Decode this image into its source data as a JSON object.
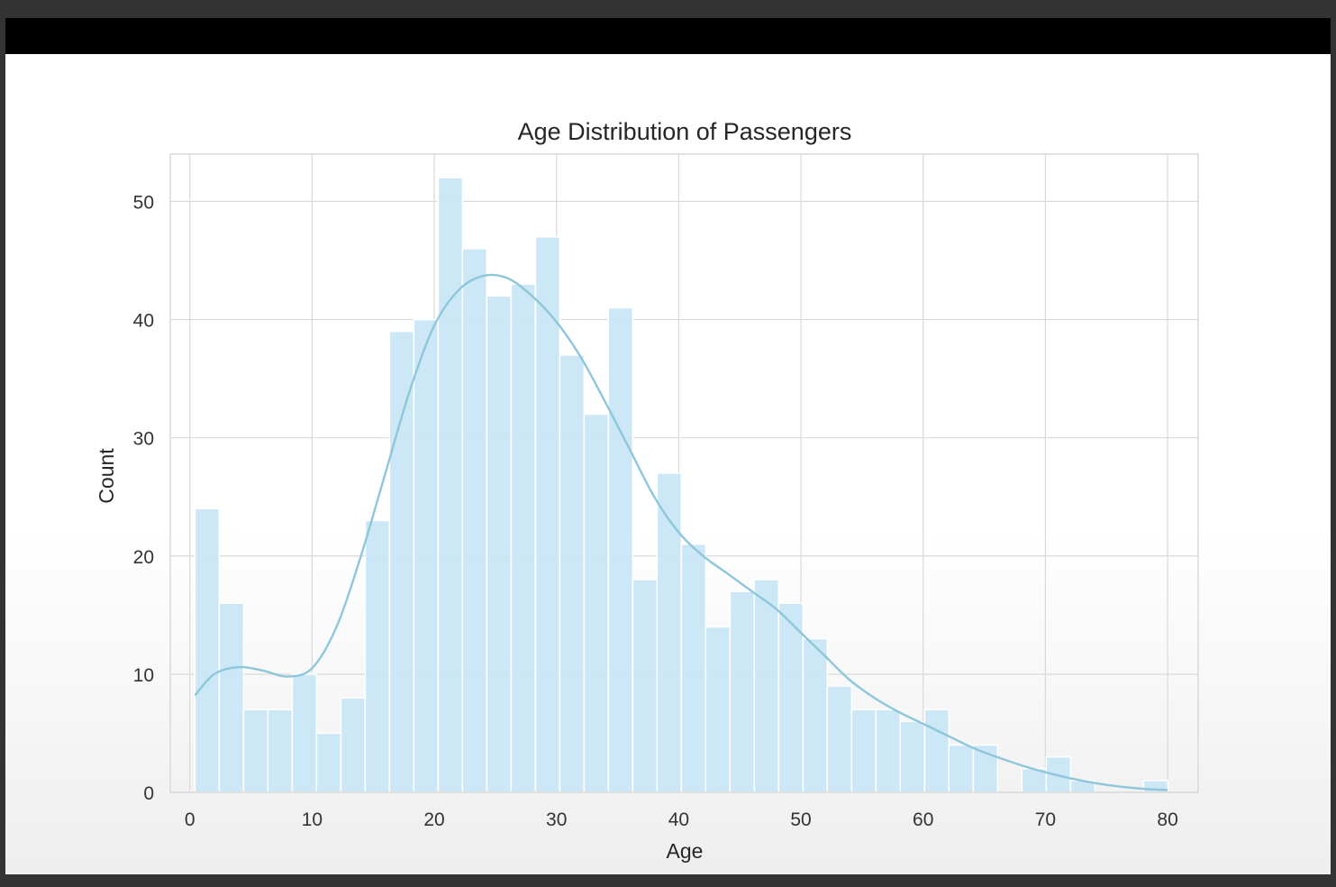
{
  "chart_data": {
    "type": "bar",
    "title": "Age Distribution of Passengers",
    "xlabel": "Age",
    "ylabel": "Count",
    "xlim": [
      -1.6,
      82.5
    ],
    "ylim": [
      0,
      54
    ],
    "xticks": [
      0,
      10,
      20,
      30,
      40,
      50,
      60,
      70,
      80
    ],
    "yticks": [
      0,
      10,
      20,
      30,
      40,
      50
    ],
    "grid": true,
    "bin_width": 1.99,
    "bin_start": 0.42,
    "bins": [
      {
        "x0": 0.42,
        "value": 24
      },
      {
        "x0": 2.41,
        "value": 16
      },
      {
        "x0": 4.4,
        "value": 7
      },
      {
        "x0": 6.39,
        "value": 7
      },
      {
        "x0": 8.38,
        "value": 10
      },
      {
        "x0": 10.37,
        "value": 5
      },
      {
        "x0": 12.36,
        "value": 8
      },
      {
        "x0": 14.35,
        "value": 23
      },
      {
        "x0": 16.34,
        "value": 39
      },
      {
        "x0": 18.33,
        "value": 40
      },
      {
        "x0": 20.32,
        "value": 52
      },
      {
        "x0": 22.31,
        "value": 46
      },
      {
        "x0": 24.3,
        "value": 42
      },
      {
        "x0": 26.29,
        "value": 43
      },
      {
        "x0": 28.28,
        "value": 47
      },
      {
        "x0": 30.27,
        "value": 37
      },
      {
        "x0": 32.26,
        "value": 32
      },
      {
        "x0": 34.25,
        "value": 41
      },
      {
        "x0": 36.24,
        "value": 18
      },
      {
        "x0": 38.23,
        "value": 27
      },
      {
        "x0": 40.22,
        "value": 21
      },
      {
        "x0": 42.21,
        "value": 14
      },
      {
        "x0": 44.2,
        "value": 17
      },
      {
        "x0": 46.19,
        "value": 18
      },
      {
        "x0": 48.18,
        "value": 16
      },
      {
        "x0": 50.17,
        "value": 13
      },
      {
        "x0": 52.16,
        "value": 9
      },
      {
        "x0": 54.15,
        "value": 7
      },
      {
        "x0": 56.14,
        "value": 7
      },
      {
        "x0": 58.13,
        "value": 6
      },
      {
        "x0": 60.12,
        "value": 7
      },
      {
        "x0": 62.11,
        "value": 4
      },
      {
        "x0": 64.1,
        "value": 4
      },
      {
        "x0": 66.09,
        "value": 0
      },
      {
        "x0": 68.08,
        "value": 2
      },
      {
        "x0": 70.07,
        "value": 3
      },
      {
        "x0": 72.06,
        "value": 1
      },
      {
        "x0": 74.05,
        "value": 0
      },
      {
        "x0": 76.04,
        "value": 0
      },
      {
        "x0": 78.03,
        "value": 1
      }
    ],
    "kde": {
      "x": [
        0.42,
        2,
        4,
        6,
        8,
        10,
        12,
        14,
        16,
        18,
        20,
        22,
        24,
        26,
        28,
        30,
        32,
        34,
        36,
        38,
        40,
        42,
        44,
        46,
        48,
        50,
        52,
        54,
        56,
        58,
        60,
        62,
        64,
        66,
        68,
        70,
        72,
        74,
        76,
        78,
        80
      ],
      "y": [
        8.2,
        10,
        10.6,
        10.3,
        9.8,
        10.5,
        14,
        20,
        27,
        34,
        39.5,
        42.5,
        43.7,
        43.5,
        42,
        39.8,
        36.8,
        33,
        29,
        25,
        22,
        20,
        18.5,
        17,
        15.5,
        13.5,
        11.5,
        9.5,
        8,
        6.8,
        5.8,
        4.8,
        3.8,
        3,
        2.3,
        1.7,
        1.2,
        0.8,
        0.5,
        0.3,
        0.2
      ]
    },
    "colors": {
      "bar_fill": "#c9e6f6",
      "bar_stroke": "#ffffff",
      "kde_line": "#8ec6da",
      "grid": "#d9d9d9",
      "frame": "#d9d9d9",
      "text": "#333333"
    }
  }
}
